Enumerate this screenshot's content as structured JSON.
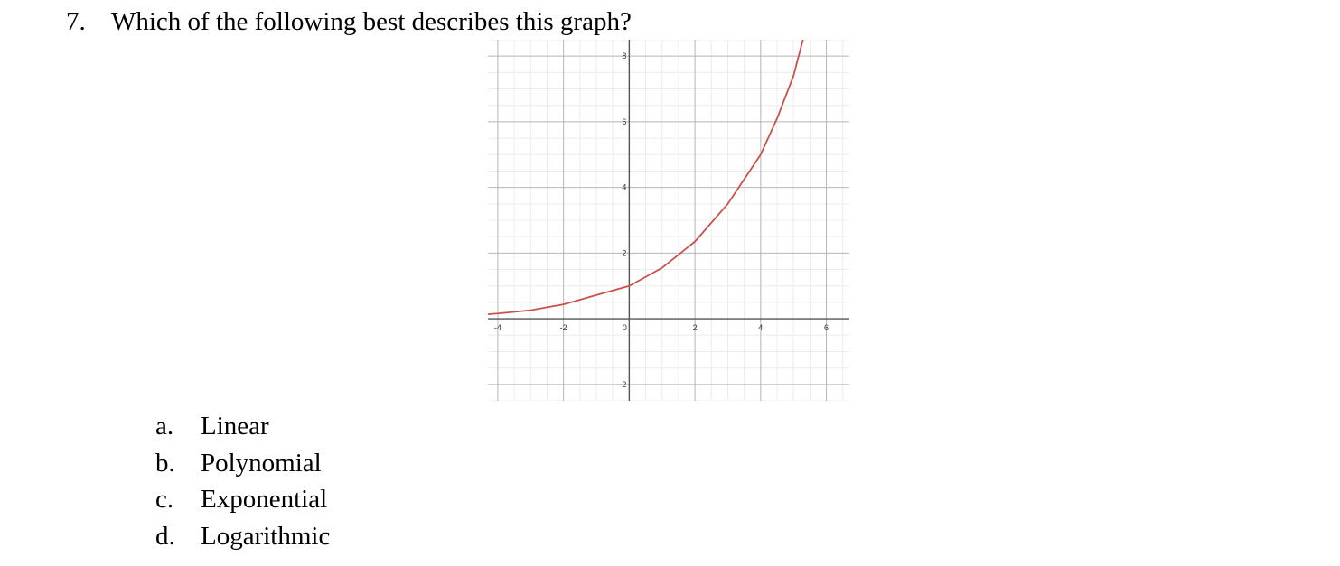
{
  "question": {
    "number": "7.",
    "text": "Which of the following best describes this graph?"
  },
  "chart_data": {
    "type": "line",
    "title": "",
    "xlabel": "",
    "ylabel": "",
    "xlim": [
      -4.3,
      6.7
    ],
    "ylim": [
      -2.5,
      8.5
    ],
    "grid": true,
    "x_ticks": [
      "-4",
      "-2",
      "0",
      "2",
      "4",
      "6"
    ],
    "y_ticks": [
      "-2",
      "2",
      "4",
      "6",
      "8"
    ],
    "series": [
      {
        "name": "",
        "color": "#c8514a",
        "x": [
          -4.3,
          -4,
          -3,
          -2,
          -1,
          0,
          1,
          2,
          3,
          4,
          4.5,
          5,
          5.3
        ],
        "y": [
          0.14,
          0.16,
          0.26,
          0.44,
          0.72,
          1.0,
          1.55,
          2.35,
          3.5,
          5.0,
          6.1,
          7.4,
          8.55
        ]
      }
    ]
  },
  "choices": [
    {
      "letter": "a.",
      "label": "Linear"
    },
    {
      "letter": "b.",
      "label": "Polynomial"
    },
    {
      "letter": "c.",
      "label": "Exponential"
    },
    {
      "letter": "d.",
      "label": "Logarithmic"
    }
  ]
}
